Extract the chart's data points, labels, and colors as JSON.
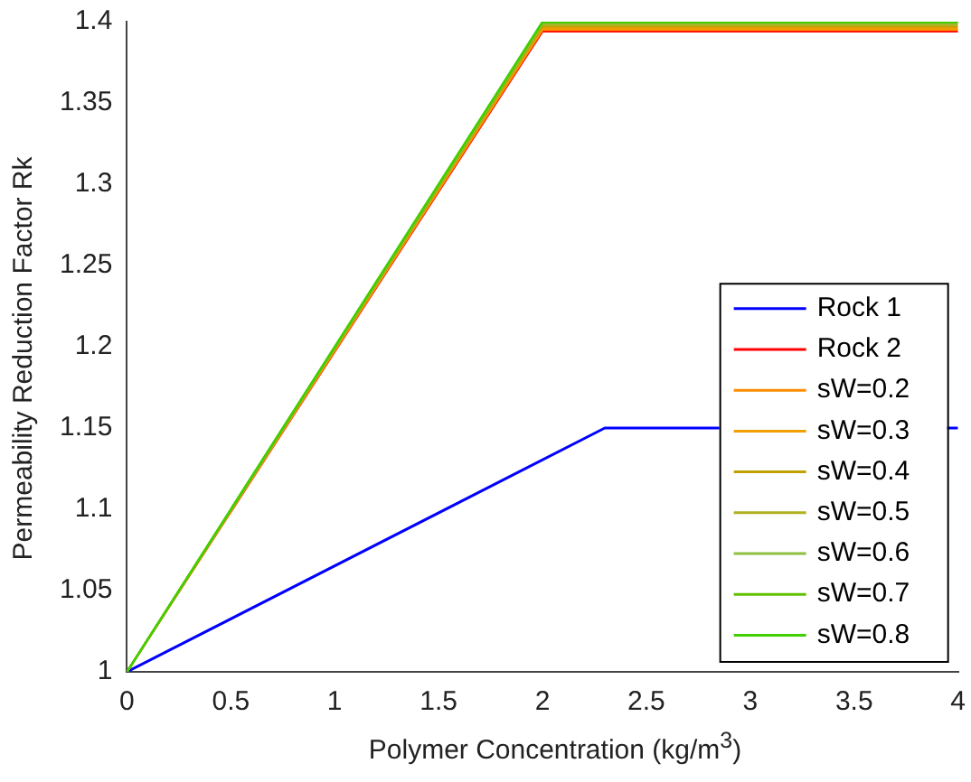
{
  "chart_data": {
    "type": "line",
    "xlabel": "Polymer Concentration (kg/m$^{3}$)",
    "ylabel": "Permeability Reduction Factor Rk",
    "xlim": [
      0,
      4
    ],
    "xticks": [
      0,
      0.5,
      1,
      1.5,
      2,
      2.5,
      3,
      3.5,
      4
    ],
    "ylim": [
      1,
      1.4
    ],
    "yticks": [
      1,
      1.05,
      1.1,
      1.15,
      1.2,
      1.25,
      1.3,
      1.35,
      1.4
    ],
    "grid": false,
    "legend": "bottom right",
    "marker": "none",
    "line_style": "solid",
    "series": [
      {
        "name": "Rock 1",
        "color": "#0000ff",
        "x": [
          0,
          2.3,
          4
        ],
        "values": [
          1,
          1.15,
          1.15
        ]
      },
      {
        "name": "Rock 2",
        "color": "#ff0000",
        "x": [
          0,
          2,
          4
        ],
        "values": [
          1,
          1.394,
          1.394
        ]
      },
      {
        "name": "sW=0.2",
        "color": "#ff8c00",
        "x": [
          0,
          2,
          4
        ],
        "values": [
          1,
          1.395,
          1.395
        ]
      },
      {
        "name": "sW=0.3",
        "color": "#f0a000",
        "x": [
          0,
          2,
          4
        ],
        "values": [
          1,
          1.396,
          1.396
        ]
      },
      {
        "name": "sW=0.4",
        "color": "#c0a000",
        "x": [
          0,
          2,
          4
        ],
        "values": [
          1,
          1.397,
          1.397
        ]
      },
      {
        "name": "sW=0.5",
        "color": "#b0b020",
        "x": [
          0,
          2,
          4
        ],
        "values": [
          1,
          1.398,
          1.398
        ]
      },
      {
        "name": "sW=0.6",
        "color": "#90c040",
        "x": [
          0,
          2,
          4
        ],
        "values": [
          1,
          1.399,
          1.399
        ]
      },
      {
        "name": "sW=0.7",
        "color": "#60c000",
        "x": [
          0,
          2,
          4
        ],
        "values": [
          1,
          1.3995,
          1.3995
        ]
      },
      {
        "name": "sW=0.8",
        "color": "#40d000",
        "x": [
          0,
          2,
          4
        ],
        "values": [
          1,
          1.4,
          1.4
        ]
      }
    ]
  }
}
